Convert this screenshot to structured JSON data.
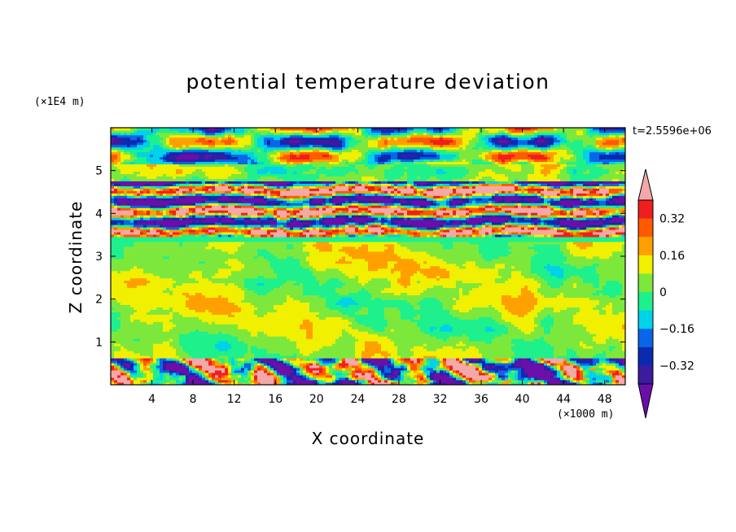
{
  "chart_data": {
    "type": "heatmap",
    "title": "potential temperature deviation",
    "xlabel": "X coordinate",
    "ylabel": "Z coordinate",
    "x_unit": "(×1000 m)",
    "y_unit": "(×1E4 m)",
    "time_label": "t=2.5596e+06",
    "xlim": [
      0,
      50
    ],
    "ylim": [
      0,
      6
    ],
    "x_ticks": [
      "4",
      "8",
      "12",
      "16",
      "20",
      "24",
      "28",
      "32",
      "36",
      "40",
      "44",
      "48"
    ],
    "y_ticks": [
      "1",
      "2",
      "3",
      "4",
      "5"
    ],
    "colorbar": {
      "levels": [
        -0.4,
        -0.32,
        -0.24,
        -0.16,
        -0.08,
        0,
        0.08,
        0.16,
        0.24,
        0.32,
        0.4
      ],
      "tick_labels": [
        "0.32",
        "0.16",
        "0",
        "−0.16",
        "−0.32"
      ],
      "colors": [
        "#6a0fa8",
        "#3b1ba0",
        "#0a2bb0",
        "#0a66e8",
        "#00d2e8",
        "#1ef08c",
        "#7de83c",
        "#f0f000",
        "#ffa000",
        "#ff5a00",
        "#f01e1e",
        "#f4a8a8"
      ],
      "extend": "both"
    },
    "layers": [
      {
        "z": [
          0,
          0.65
        ],
        "description": "boundary layer: mixed strong positive and negative deviations"
      },
      {
        "z": [
          0.65,
          3.4
        ],
        "description": "near zero (green), weak fluctuations"
      },
      {
        "z": [
          3.4,
          4.7
        ],
        "description": "strong alternating positive/negative bands"
      },
      {
        "z": [
          4.7,
          6.0
        ],
        "description": "large-scale waves, magenta/red and purple cells"
      }
    ]
  }
}
